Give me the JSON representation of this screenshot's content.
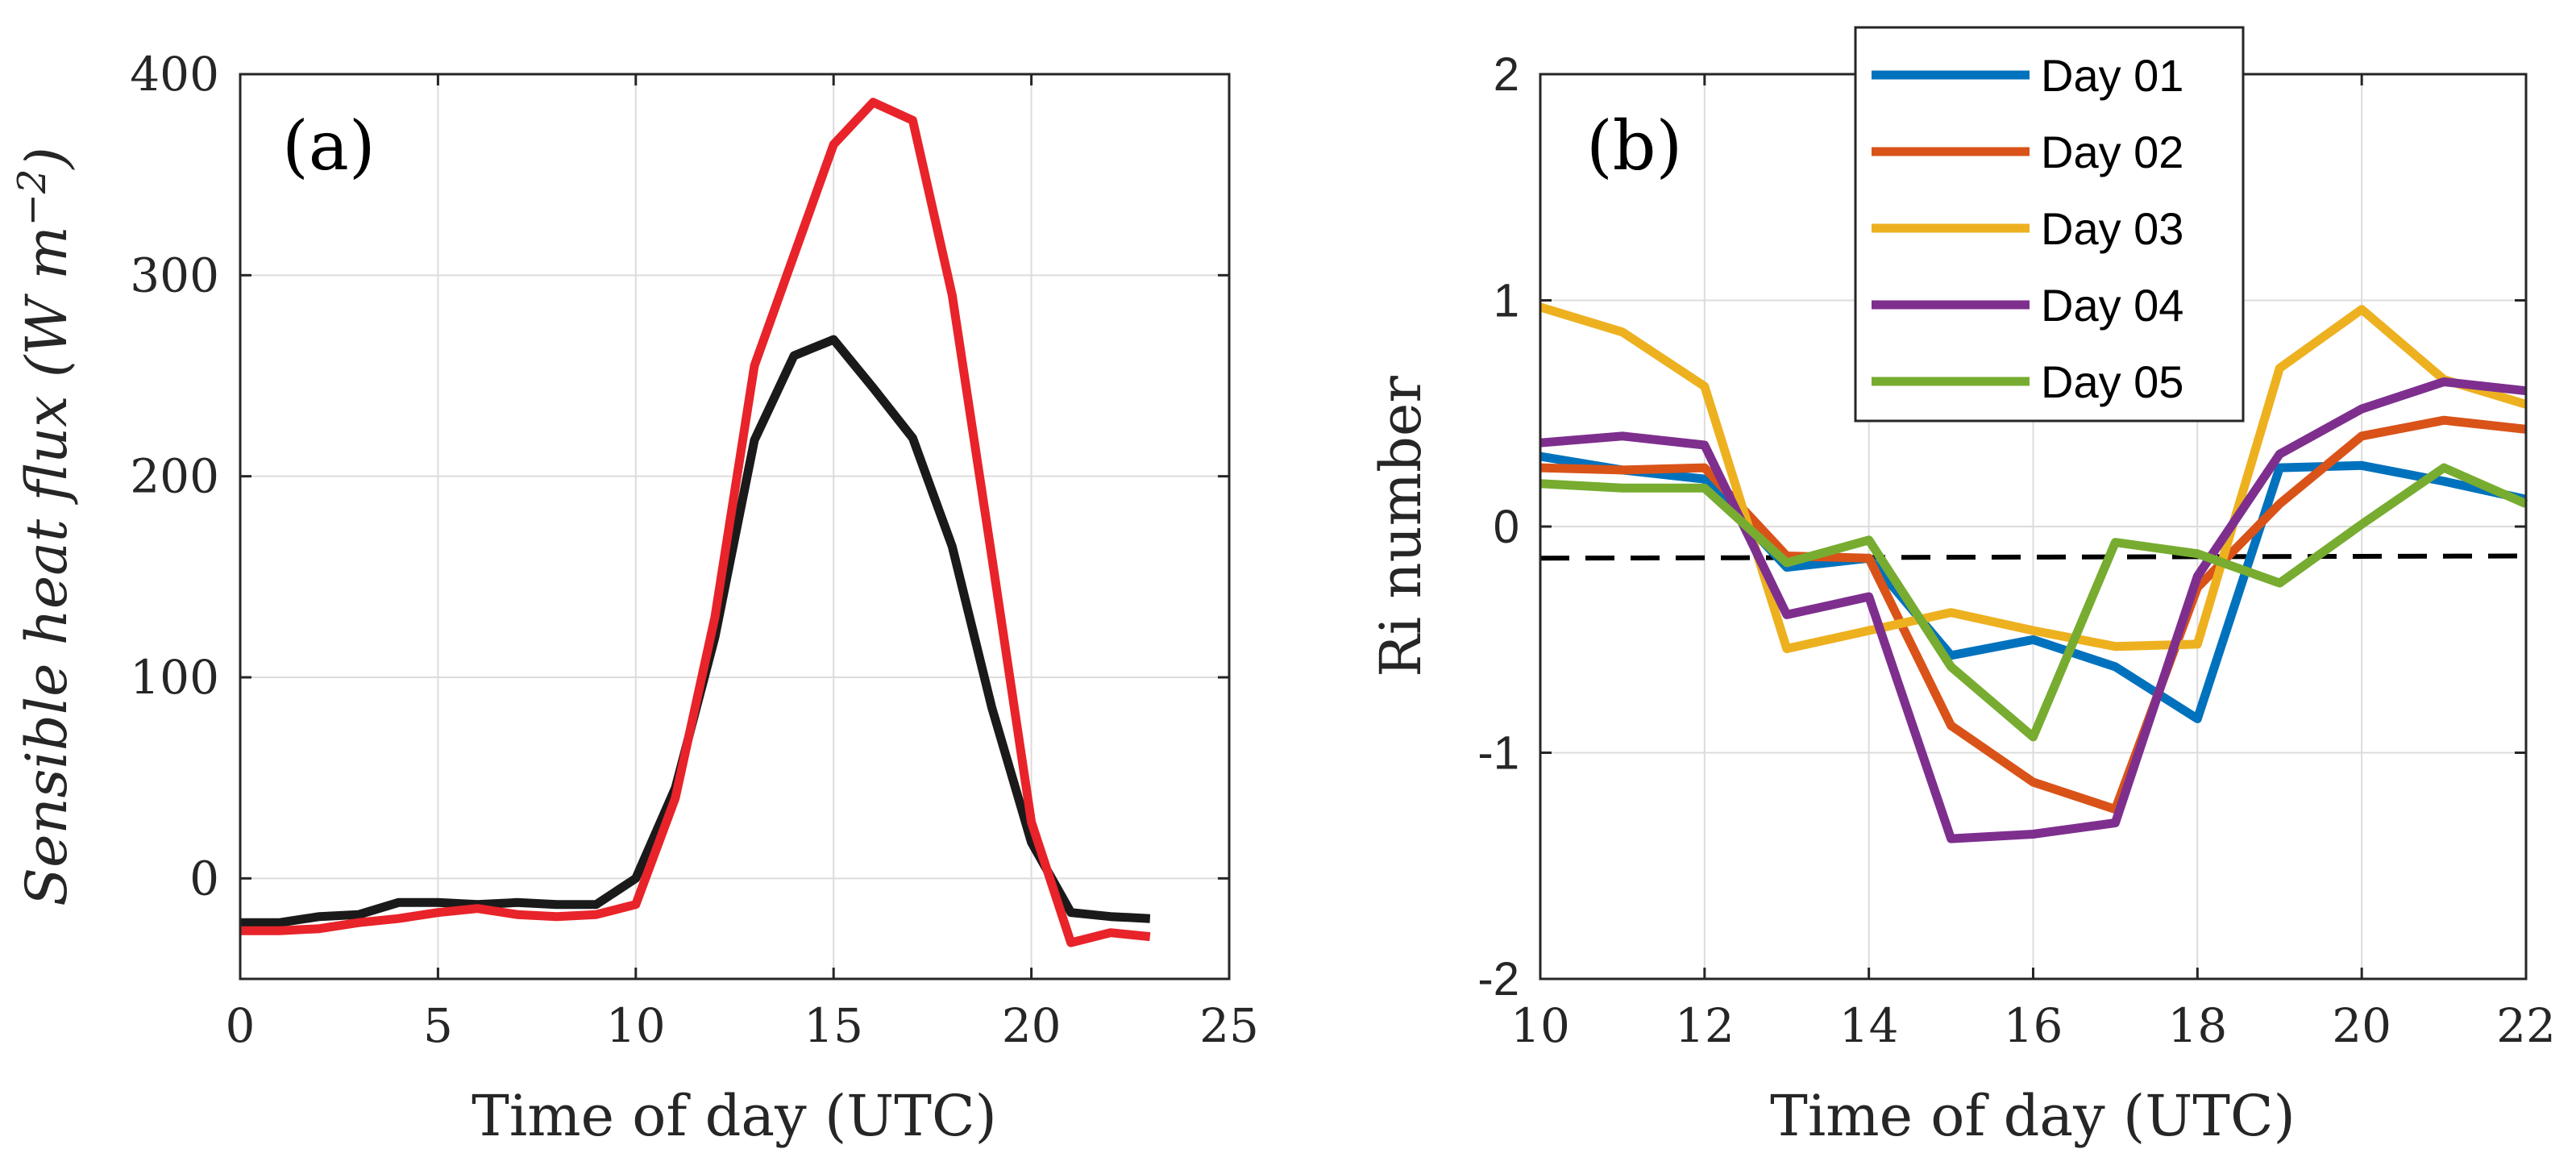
{
  "chart_data": [
    {
      "type": "line",
      "panel_label": "(a)",
      "xlabel": "Time of day (UTC)",
      "ylabel_prefix": "Sensible heat flux (W m",
      "ylabel_sup": "−2",
      "ylabel_suffix": ")",
      "xlim": [
        0,
        25
      ],
      "ylim": [
        -50,
        400
      ],
      "xticks": [
        0,
        5,
        10,
        15,
        20,
        25
      ],
      "yticks": [
        0,
        100,
        200,
        300,
        400
      ],
      "grid": true,
      "series": [
        {
          "name": "black",
          "color": "#1a1a1a",
          "x": [
            0,
            1,
            2,
            3,
            4,
            5,
            6,
            7,
            8,
            9,
            10,
            11,
            12,
            13,
            14,
            15,
            16,
            17,
            18,
            19,
            20,
            21,
            22,
            23
          ],
          "values": [
            -22,
            -22,
            -19,
            -18,
            -12,
            -12,
            -13,
            -12,
            -13,
            -13,
            0,
            45,
            120,
            218,
            260,
            268,
            244,
            219,
            165,
            85,
            18,
            -17,
            -19,
            -20
          ]
        },
        {
          "name": "red",
          "color": "#e8232a",
          "x": [
            0,
            1,
            2,
            3,
            4,
            5,
            6,
            7,
            8,
            9,
            10,
            11,
            12,
            13,
            14,
            15,
            16,
            17,
            18,
            19,
            20,
            21,
            22,
            23
          ],
          "values": [
            -26,
            -26,
            -25,
            -22,
            -20,
            -17,
            -15,
            -18,
            -19,
            -18,
            -13,
            40,
            130,
            255,
            310,
            365,
            386,
            377,
            290,
            160,
            28,
            -32,
            -27,
            -29
          ]
        }
      ]
    },
    {
      "type": "line",
      "panel_label": "(b)",
      "xlabel": "Time of day (UTC)",
      "ylabel": "Ri number",
      "xlim": [
        10,
        22
      ],
      "ylim": [
        -2,
        2
      ],
      "xticks": [
        10,
        12,
        14,
        16,
        18,
        20,
        22
      ],
      "yticks": [
        -2,
        -1,
        0,
        1,
        2
      ],
      "ytick_labels": [
        "-2",
        "-1",
        "0",
        "1",
        "2"
      ],
      "grid": true,
      "legend_position": "top-right",
      "reference_line": {
        "style": "dashed",
        "color": "#000000",
        "y_start": -0.14,
        "y_end": -0.13
      },
      "series": [
        {
          "name": "Day 01",
          "color": "#0072bd",
          "x": [
            10,
            11,
            12,
            13,
            14,
            15,
            16,
            17,
            18,
            19,
            20,
            21,
            22
          ],
          "values": [
            0.31,
            0.25,
            0.21,
            -0.18,
            -0.14,
            -0.57,
            -0.5,
            -0.62,
            -0.85,
            0.26,
            0.27,
            0.2,
            0.12
          ]
        },
        {
          "name": "Day 02",
          "color": "#d95319",
          "x": [
            10,
            11,
            12,
            13,
            14,
            15,
            16,
            17,
            18,
            19,
            20,
            21,
            22
          ],
          "values": [
            0.26,
            0.25,
            0.26,
            -0.13,
            -0.14,
            -0.88,
            -1.13,
            -1.25,
            -0.27,
            0.1,
            0.4,
            0.47,
            0.43
          ]
        },
        {
          "name": "Day 03",
          "color": "#edb120",
          "x": [
            10,
            11,
            12,
            13,
            14,
            15,
            16,
            17,
            18,
            19,
            20,
            21,
            22
          ],
          "values": [
            0.97,
            0.86,
            0.62,
            -0.54,
            -0.46,
            -0.38,
            -0.46,
            -0.53,
            -0.52,
            0.7,
            0.96,
            0.65,
            0.54
          ]
        },
        {
          "name": "Day 04",
          "color": "#7e2f8e",
          "x": [
            10,
            11,
            12,
            13,
            14,
            15,
            16,
            17,
            18,
            19,
            20,
            21,
            22
          ],
          "values": [
            0.37,
            0.4,
            0.36,
            -0.39,
            -0.31,
            -1.38,
            -1.36,
            -1.31,
            -0.22,
            0.32,
            0.52,
            0.64,
            0.6
          ]
        },
        {
          "name": "Day 05",
          "color": "#77ac30",
          "x": [
            10,
            11,
            12,
            13,
            14,
            15,
            16,
            17,
            18,
            19,
            20,
            21,
            22
          ],
          "values": [
            0.19,
            0.17,
            0.17,
            -0.16,
            -0.06,
            -0.62,
            -0.93,
            -0.07,
            -0.12,
            -0.25,
            0.01,
            0.26,
            0.1
          ]
        }
      ]
    }
  ]
}
